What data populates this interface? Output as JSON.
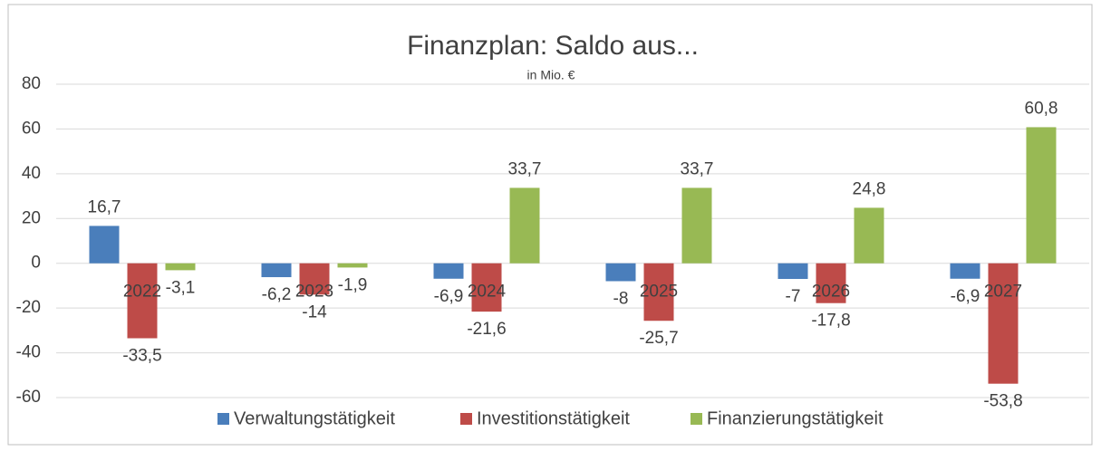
{
  "chart_data": {
    "type": "bar",
    "title": "Finanzplan: Saldo aus...",
    "subtitle": "in Mio. €",
    "categories": [
      "2022",
      "2023",
      "2024",
      "2025",
      "2026",
      "2027"
    ],
    "series": [
      {
        "name": "Verwaltungstätigkeit",
        "color": "#4a7ebb",
        "values": [
          16.7,
          -6.2,
          -6.9,
          -8,
          -7,
          -6.9
        ],
        "value_labels": [
          "16,7",
          "-6,2",
          "-6,9",
          "-8",
          "-7",
          "-6,9"
        ]
      },
      {
        "name": "Investitionstätigkeit",
        "color": "#be4b48",
        "values": [
          -33.5,
          -14,
          -21.6,
          -25.7,
          -17.8,
          -53.8
        ],
        "value_labels": [
          "-33,5",
          "-14",
          "-21,6",
          "-25,7",
          "-17,8",
          "-53,8"
        ]
      },
      {
        "name": "Finanzierungstätigkeit",
        "color": "#98b954",
        "values": [
          -3.1,
          -1.9,
          33.7,
          33.7,
          24.8,
          60.8
        ],
        "value_labels": [
          "-3,1",
          "-1,9",
          "33,7",
          "33,7",
          "24,8",
          "60,8"
        ]
      }
    ],
    "ylim": [
      -60,
      80
    ],
    "yticks": [
      -60,
      -40,
      -20,
      0,
      20,
      40,
      60,
      80
    ],
    "grid": true,
    "legend": "bottom"
  }
}
